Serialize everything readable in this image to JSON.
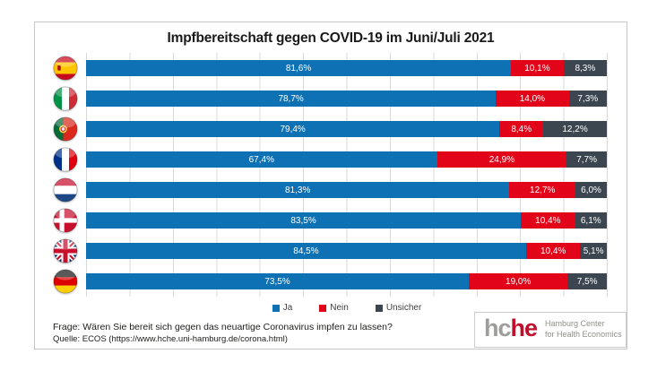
{
  "title": "Impfbereitschaft gegen COVID-19 im Juni/Juli 2021",
  "colors": {
    "ja": "#0e71b4",
    "nein": "#e2051a",
    "unsicher": "#3b4650",
    "grid": "#d9d9d9",
    "card_border": "#c6c6c6"
  },
  "chart_data": {
    "type": "bar",
    "orientation": "horizontal",
    "stacked": true,
    "xlim": [
      0,
      100
    ],
    "grid": true,
    "legend_position": "bottom",
    "title": "Impfbereitschaft gegen COVID-19 im Juni/Juli 2021",
    "categories": [
      "Spanien",
      "Italien",
      "Portugal",
      "Frankreich",
      "Niederlande",
      "Dänemark",
      "Großbritannien",
      "Deutschland"
    ],
    "flag_codes": [
      "es",
      "it",
      "pt",
      "fr",
      "nl",
      "dk",
      "gb",
      "de"
    ],
    "flag_names": [
      "spain",
      "italy",
      "portugal",
      "france",
      "netherlands",
      "denmark",
      "uk",
      "germany"
    ],
    "series": [
      {
        "name": "Ja",
        "color": "#0e71b4",
        "values": [
          81.6,
          78.7,
          79.4,
          67.4,
          81.3,
          83.5,
          84.5,
          73.5
        ]
      },
      {
        "name": "Nein",
        "color": "#e2051a",
        "values": [
          10.1,
          14.0,
          8.4,
          24.9,
          12.7,
          10.4,
          10.4,
          19.0
        ]
      },
      {
        "name": "Unsicher",
        "color": "#3b4650",
        "values": [
          8.3,
          7.3,
          12.2,
          7.7,
          6.0,
          6.1,
          5.1,
          7.5
        ]
      }
    ],
    "value_labels": [
      [
        "81,6%",
        "10,1%",
        "8,3%"
      ],
      [
        "78,7%",
        "14,0%",
        "7,3%"
      ],
      [
        "79,4%",
        "8,4%",
        "12,2%"
      ],
      [
        "67,4%",
        "24,9%",
        "7,7%"
      ],
      [
        "81,3%",
        "12,7%",
        "6,0%"
      ],
      [
        "83,5%",
        "10,4%",
        "6,1%"
      ],
      [
        "84,5%",
        "10,4%",
        "5,1%"
      ],
      [
        "73,5%",
        "19,0%",
        "7,5%"
      ]
    ]
  },
  "legend": [
    {
      "key": "ja",
      "label": "Ja"
    },
    {
      "key": "nein",
      "label": "Nein"
    },
    {
      "key": "unsicher",
      "label": "Unsicher"
    }
  ],
  "footer": {
    "frage": "Frage: Wären Sie bereit sich gegen das neuartige Coronavirus impfen zu lassen?",
    "quelle": "Quelle: ECOS (https://www.hche.uni-hamburg.de/corona.html)"
  },
  "logo": {
    "word_gray": "hc",
    "word_red": "he",
    "line1": "Hamburg Center",
    "line2": "for Health Economics"
  }
}
